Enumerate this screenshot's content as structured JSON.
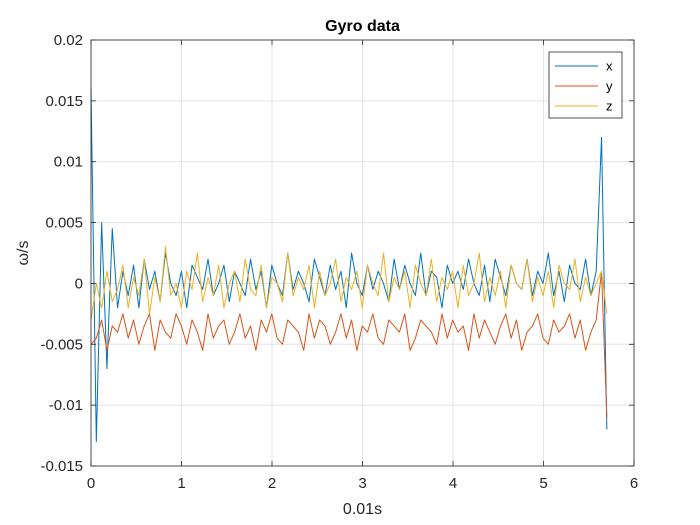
{
  "chart_data": {
    "type": "line",
    "title": "Gyro data",
    "xlabel": "0.01s",
    "ylabel": "ω/s",
    "xlim": [
      0,
      6
    ],
    "ylim": [
      -0.015,
      0.02
    ],
    "xticks": [
      0,
      1,
      2,
      3,
      4,
      5,
      6
    ],
    "xtick_labels": [
      "0",
      "1",
      "2",
      "3",
      "4",
      "5",
      "6"
    ],
    "yticks": [
      -0.015,
      -0.01,
      -0.005,
      0,
      0.005,
      0.01,
      0.015,
      0.02
    ],
    "ytick_labels": [
      "-0.015",
      "-0.01",
      "-0.005",
      "0",
      "0.005",
      "0.01",
      "0.015",
      "0.02"
    ],
    "grid": true,
    "legend_position": "top-right",
    "x_end": 5.7,
    "series": [
      {
        "name": "x",
        "color": "#0072BD",
        "values": [
          0.016,
          -0.013,
          0.005,
          -0.007,
          0.0045,
          -0.002,
          0.001,
          -0.001,
          0.0015,
          -0.002,
          0.002,
          -0.0005,
          0.001,
          -0.0015,
          0.0025,
          0.0,
          -0.001,
          0.001,
          -0.002,
          0.0015,
          0.0005,
          -0.0005,
          0.002,
          -0.001,
          0.0,
          0.0015,
          -0.0015,
          0.001,
          0.0,
          -0.001,
          0.002,
          -0.0005,
          0.001,
          -0.002,
          0.0015,
          0.0,
          -0.001,
          0.0025,
          -0.0005,
          0.001,
          0.0,
          -0.0015,
          0.002,
          0.0005,
          -0.001,
          0.0015,
          -0.0005,
          0.001,
          -0.002,
          0.0025,
          0.0,
          -0.001,
          0.0015,
          -0.0005,
          0.001,
          0.0,
          -0.0015,
          0.002,
          -0.0005,
          0.0015,
          0.0,
          -0.001,
          0.0025,
          -0.001,
          0.001,
          0.0005,
          -0.002,
          0.0015,
          0.0,
          0.001,
          -0.0005,
          0.002,
          0.0,
          -0.001,
          0.0015,
          -0.0015,
          0.002,
          0.0005,
          -0.001,
          0.0015,
          0.0,
          -0.0005,
          0.002,
          -0.001,
          0.001,
          0.0,
          0.0025,
          -0.001,
          0.001,
          -0.0015,
          0.0015,
          0.0,
          -0.0005,
          0.002,
          -0.001,
          0.001,
          0.012,
          -0.012
        ]
      },
      {
        "name": "y",
        "color": "#D95319",
        "values": [
          -0.005,
          -0.0045,
          -0.003,
          -0.0055,
          -0.0035,
          -0.004,
          -0.0025,
          -0.0045,
          -0.003,
          -0.005,
          -0.0035,
          -0.0025,
          -0.0055,
          -0.003,
          -0.004,
          -0.0045,
          -0.0025,
          -0.0035,
          -0.005,
          -0.003,
          -0.004,
          -0.0055,
          -0.0025,
          -0.0045,
          -0.0035,
          -0.003,
          -0.005,
          -0.004,
          -0.0025,
          -0.0045,
          -0.0035,
          -0.0055,
          -0.003,
          -0.004,
          -0.0025,
          -0.0045,
          -0.005,
          -0.003,
          -0.0035,
          -0.004,
          -0.0055,
          -0.0025,
          -0.0045,
          -0.003,
          -0.0035,
          -0.005,
          -0.004,
          -0.0025,
          -0.0045,
          -0.003,
          -0.0055,
          -0.0035,
          -0.004,
          -0.0025,
          -0.0045,
          -0.005,
          -0.003,
          -0.0035,
          -0.004,
          -0.0025,
          -0.0055,
          -0.0045,
          -0.003,
          -0.0035,
          -0.004,
          -0.005,
          -0.0025,
          -0.0045,
          -0.003,
          -0.004,
          -0.0035,
          -0.0055,
          -0.0025,
          -0.0045,
          -0.003,
          -0.004,
          -0.005,
          -0.0035,
          -0.0025,
          -0.0045,
          -0.003,
          -0.0055,
          -0.004,
          -0.0035,
          -0.0025,
          -0.0045,
          -0.005,
          -0.003,
          -0.004,
          -0.0035,
          -0.0025,
          -0.0045,
          -0.003,
          -0.0055,
          -0.004,
          -0.003,
          0.001,
          -0.011
        ]
      },
      {
        "name": "z",
        "color": "#EDB120",
        "values": [
          -0.003,
          0.0,
          -0.002,
          0.001,
          -0.0015,
          -0.0005,
          0.0015,
          -0.002,
          0.0005,
          -0.001,
          0.002,
          -0.0025,
          0.0005,
          -0.0015,
          0.003,
          -0.001,
          0.0,
          -0.002,
          0.001,
          -0.0005,
          0.0025,
          -0.0015,
          0.0005,
          -0.001,
          0.0015,
          -0.002,
          0.0,
          0.001,
          -0.0015,
          0.002,
          -0.0005,
          -0.001,
          0.0015,
          -0.002,
          0.0005,
          0.0,
          -0.0015,
          0.0025,
          -0.001,
          0.0005,
          -0.0005,
          0.0015,
          -0.002,
          0.001,
          -0.001,
          0.0,
          0.002,
          -0.0015,
          0.0005,
          -0.0005,
          0.001,
          -0.002,
          0.0015,
          0.0,
          -0.001,
          0.0025,
          -0.0015,
          0.0005,
          -0.0005,
          0.001,
          -0.002,
          0.0015,
          0.0,
          -0.001,
          0.002,
          -0.0015,
          0.0005,
          -0.0005,
          0.001,
          -0.002,
          0.0015,
          -0.001,
          0.0,
          0.0025,
          -0.0015,
          0.0005,
          -0.001,
          0.001,
          -0.002,
          0.0015,
          0.0,
          -0.0005,
          0.002,
          -0.0015,
          0.0005,
          -0.001,
          0.001,
          -0.002,
          0.0015,
          0.0,
          -0.0005,
          0.002,
          -0.0015,
          0.0005,
          -0.001,
          0.0,
          0.001,
          -0.0025
        ]
      }
    ]
  }
}
